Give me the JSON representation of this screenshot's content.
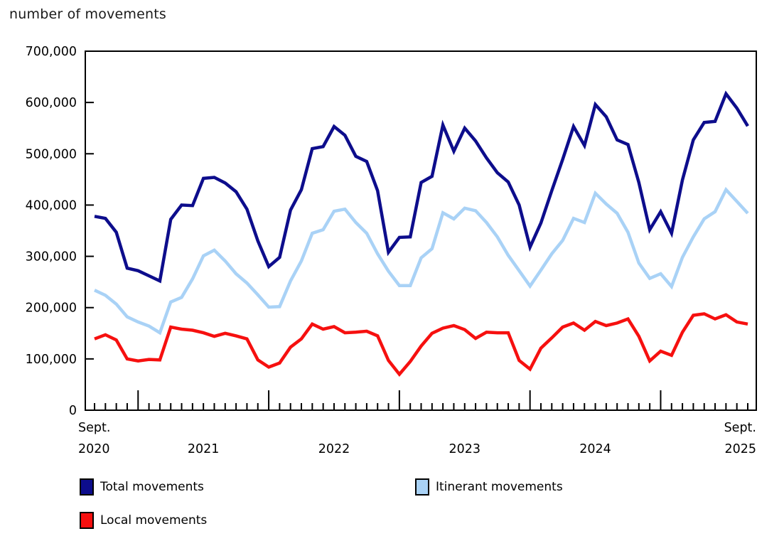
{
  "page": {
    "title": "number of movements"
  },
  "chart_data": {
    "type": "line",
    "title": "number of movements",
    "xlabel": "",
    "ylabel": "number of movements",
    "ylim": [
      0,
      700000
    ],
    "grid": false,
    "legend_position": "bottom",
    "x": [
      "2020-09",
      "2020-10",
      "2020-11",
      "2020-12",
      "2021-01",
      "2021-02",
      "2021-03",
      "2021-04",
      "2021-05",
      "2021-06",
      "2021-07",
      "2021-08",
      "2021-09",
      "2021-10",
      "2021-11",
      "2021-12",
      "2022-01",
      "2022-02",
      "2022-03",
      "2022-04",
      "2022-05",
      "2022-06",
      "2022-07",
      "2022-08",
      "2022-09",
      "2022-10",
      "2022-11",
      "2022-12",
      "2023-01",
      "2023-02",
      "2023-03",
      "2023-04",
      "2023-05",
      "2023-06",
      "2023-07",
      "2023-08",
      "2023-09",
      "2023-10",
      "2023-11",
      "2023-12",
      "2024-01",
      "2024-02",
      "2024-03",
      "2024-04",
      "2024-05",
      "2024-06",
      "2024-07",
      "2024-08",
      "2024-09",
      "2024-10",
      "2024-11",
      "2024-12",
      "2025-01",
      "2025-02",
      "2025-03",
      "2025-04",
      "2025-05",
      "2025-06",
      "2025-07",
      "2025-08",
      "2025-09"
    ],
    "x_axis_labels": {
      "start": [
        "Sept.",
        "2020"
      ],
      "mid_years": [
        "2021",
        "2022",
        "2023",
        "2024"
      ],
      "end": [
        "Sept.",
        "2025"
      ]
    },
    "y_ticks": [
      0,
      100000,
      200000,
      300000,
      400000,
      500000,
      600000,
      700000
    ],
    "y_tick_labels": [
      "0",
      "100,000",
      "200,000",
      "300,000",
      "400,000",
      "500,000",
      "600,000",
      "700,000"
    ],
    "series": [
      {
        "name": "Total movements",
        "color": "#0d0d8c",
        "values": [
          378000,
          374000,
          347000,
          277000,
          272000,
          262000,
          252000,
          372000,
          400000,
          399000,
          452000,
          454000,
          443000,
          426000,
          392000,
          330000,
          280000,
          298000,
          390000,
          430000,
          510000,
          514000,
          553000,
          536000,
          495000,
          485000,
          428000,
          308000,
          337000,
          338000,
          444000,
          456000,
          556000,
          505000,
          550000,
          525000,
          492000,
          463000,
          445000,
          400000,
          318000,
          365000,
          428000,
          489000,
          553000,
          516000,
          596000,
          572000,
          527000,
          518000,
          444000,
          352000,
          387000,
          345000,
          449000,
          527000,
          561000,
          563000,
          617000,
          589000,
          554000
        ]
      },
      {
        "name": "Itinerant movements",
        "color": "#a9d2f6",
        "values": [
          234000,
          224000,
          207000,
          182000,
          172000,
          164000,
          151000,
          211000,
          220000,
          256000,
          301000,
          312000,
          291000,
          266000,
          248000,
          225000,
          201000,
          202000,
          252000,
          291000,
          345000,
          352000,
          388000,
          392000,
          366000,
          345000,
          305000,
          271000,
          243000,
          243000,
          297000,
          315000,
          385000,
          373000,
          394000,
          389000,
          366000,
          338000,
          302000,
          272000,
          242000,
          273000,
          305000,
          331000,
          374000,
          366000,
          423000,
          402000,
          384000,
          347000,
          287000,
          257000,
          266000,
          241000,
          298000,
          338000,
          373000,
          387000,
          430000,
          407000,
          384000
        ]
      },
      {
        "name": "Local movements",
        "color": "#f6100f",
        "values": [
          139000,
          147000,
          137000,
          100000,
          96000,
          99000,
          98000,
          162000,
          158000,
          156000,
          151000,
          144000,
          150000,
          145000,
          139000,
          98000,
          84000,
          92000,
          123000,
          139000,
          168000,
          158000,
          163000,
          151000,
          152000,
          154000,
          145000,
          97000,
          70000,
          95000,
          125000,
          150000,
          160000,
          165000,
          157000,
          140000,
          152000,
          151000,
          151000,
          97000,
          80000,
          121000,
          141000,
          162000,
          170000,
          156000,
          173000,
          165000,
          170000,
          178000,
          144000,
          96000,
          115000,
          107000,
          152000,
          185000,
          188000,
          178000,
          186000,
          172000,
          168000
        ]
      }
    ]
  },
  "legend": {
    "items": [
      {
        "label": "Total movements",
        "color": "#0d0d8c"
      },
      {
        "label": "Itinerant movements",
        "color": "#a9d2f6"
      },
      {
        "label": "Local movements",
        "color": "#f6100f"
      }
    ]
  }
}
